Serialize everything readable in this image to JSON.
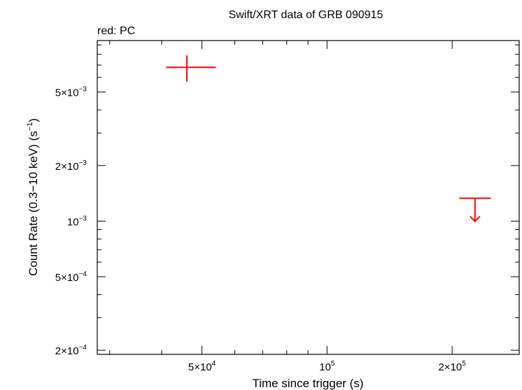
{
  "chart_data": {
    "type": "scatter",
    "title": "Swift/XRT data of GRB 090915",
    "subtitle": "red: PC",
    "xlabel": "Time since trigger (s)",
    "ylabel_parts": {
      "base": "Count Rate (0.3−10 keV) (s",
      "sup": "−1",
      "close": ")"
    },
    "x_scale": "log",
    "y_scale": "log",
    "xlim": [
      28000,
      290000
    ],
    "ylim": [
      0.00019,
      0.0095
    ],
    "x_ticks": [
      {
        "value": 50000,
        "mant": "5×10",
        "exp": "4"
      },
      {
        "value": 100000,
        "mant": "10",
        "exp": "5"
      },
      {
        "value": 200000,
        "mant": "2×10",
        "exp": "5"
      }
    ],
    "y_ticks": [
      {
        "value": 0.0002,
        "mant": "2×10",
        "exp": "−4"
      },
      {
        "value": 0.0005,
        "mant": "5×10",
        "exp": "−4"
      },
      {
        "value": 0.001,
        "mant": "10",
        "exp": "−3"
      },
      {
        "value": 0.002,
        "mant": "2×10",
        "exp": "−3"
      },
      {
        "value": 0.005,
        "mant": "5×10",
        "exp": "−3"
      }
    ],
    "series": [
      {
        "color": "#ff0000",
        "points": [
          {
            "x": 46000,
            "xerr": [
              41000,
              54000
            ],
            "y": 0.0068,
            "yerr": [
              0.0057,
              0.0079
            ]
          }
        ],
        "upper_limits": [
          {
            "x": 227000,
            "xerr": [
              208000,
              248000
            ],
            "y": 0.00133
          }
        ]
      }
    ],
    "grid": false
  }
}
